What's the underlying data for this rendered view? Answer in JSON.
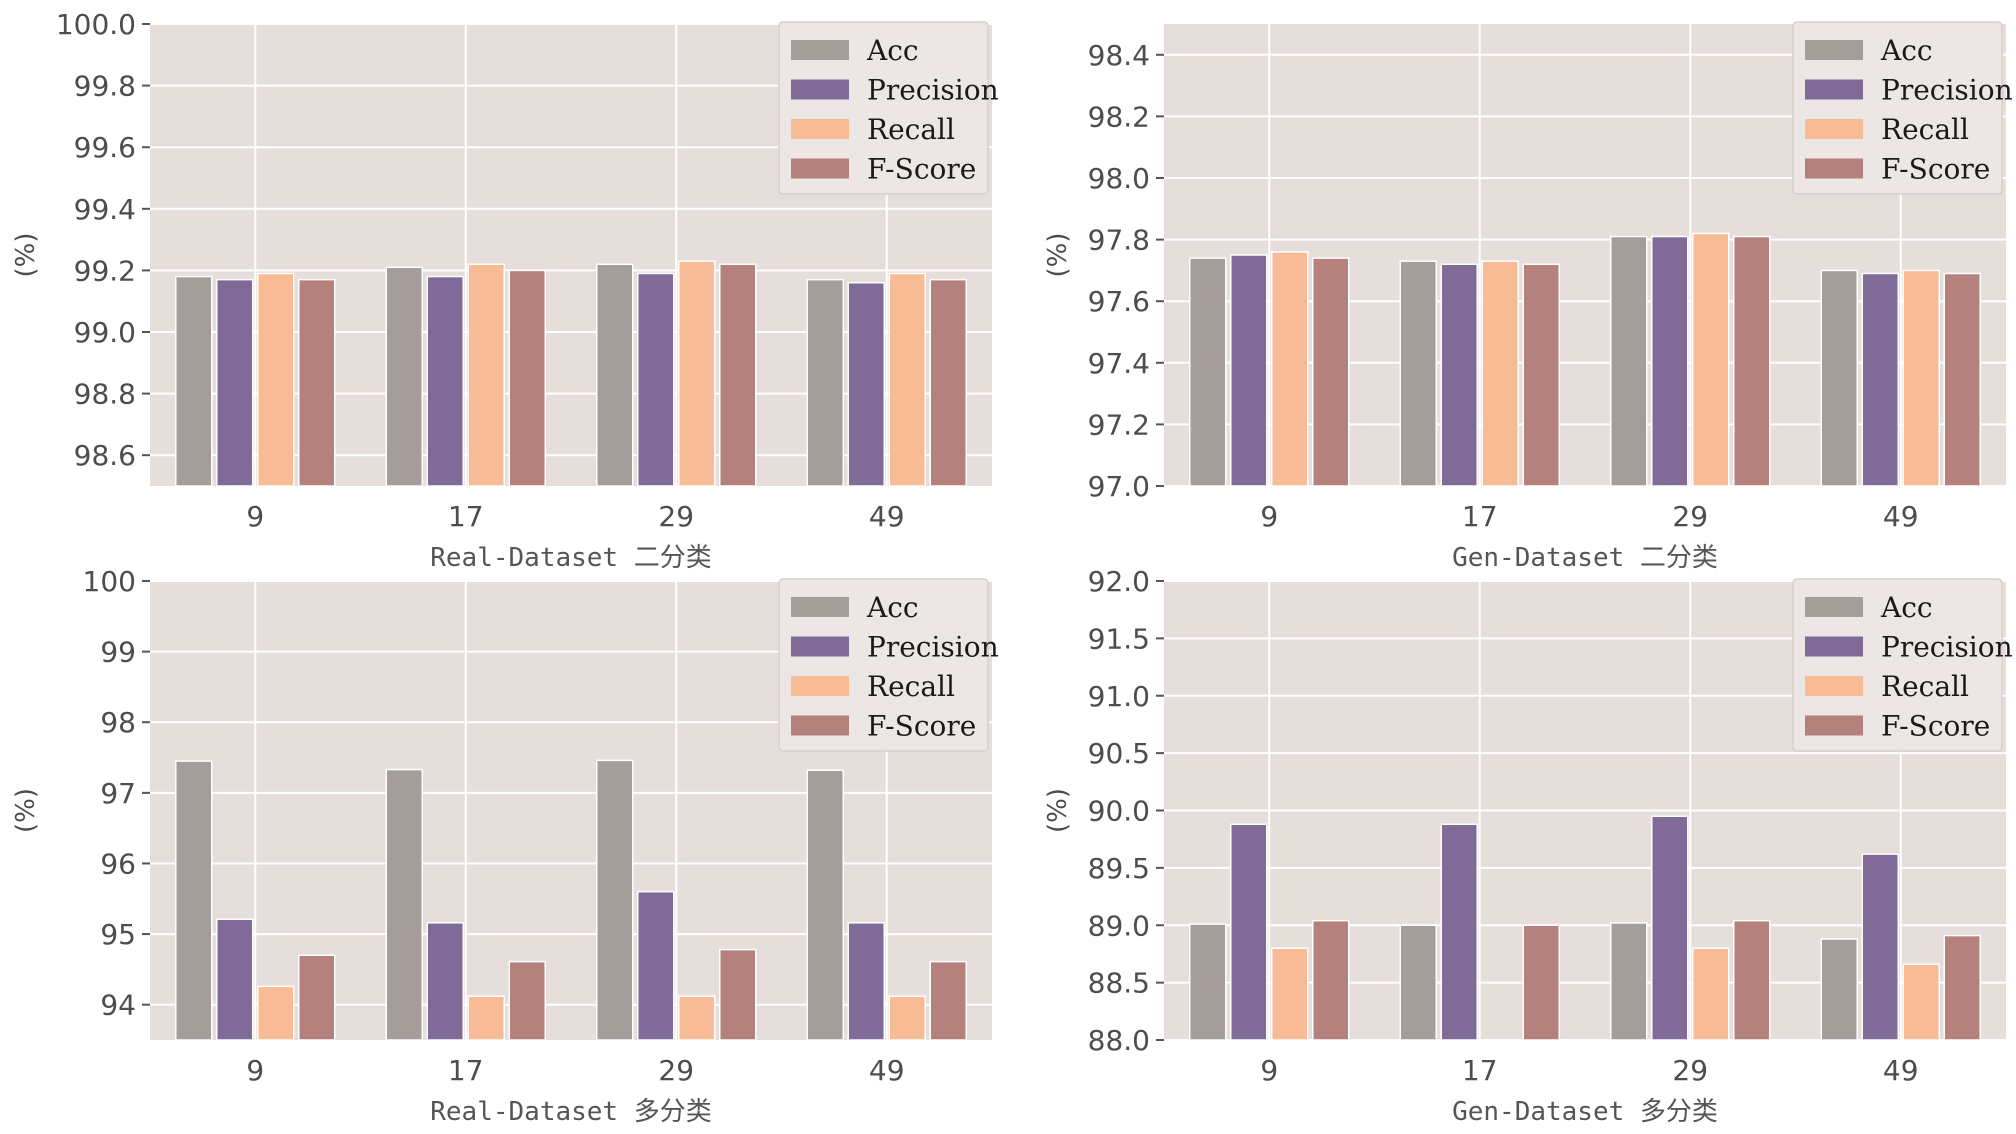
{
  "colors": {
    "background": "#e5dedb",
    "grid": "#ffffff",
    "legend_bg": "#ece7e5",
    "legend_border": "#d6cfcc"
  },
  "chart_data": [
    {
      "type": "bar",
      "xlabel": "Real-Dataset 二分类",
      "ylabel": "(%)",
      "categories": [
        "9",
        "17",
        "29",
        "49"
      ],
      "ylim": [
        98.5,
        100.0
      ],
      "yticks": [
        98.6,
        98.8,
        99.0,
        99.2,
        99.4,
        99.6,
        99.8,
        100.0
      ],
      "ytick_labels": [
        "98.6",
        "98.8",
        "99.0",
        "99.2",
        "99.4",
        "99.6",
        "99.8",
        "100.0"
      ],
      "grid": true,
      "legend": "top-right",
      "series": [
        {
          "name": "Acc",
          "color": "#a59d9a",
          "values": [
            99.18,
            99.21,
            99.22,
            99.17
          ]
        },
        {
          "name": "Precision",
          "color": "#806b98",
          "values": [
            99.17,
            99.18,
            99.19,
            99.16
          ]
        },
        {
          "name": "Recall",
          "color": "#f7bb96",
          "values": [
            99.19,
            99.22,
            99.23,
            99.19
          ]
        },
        {
          "name": "F-Score",
          "color": "#b5817d",
          "values": [
            99.17,
            99.2,
            99.22,
            99.17
          ]
        }
      ]
    },
    {
      "type": "bar",
      "xlabel": "Gen-Dataset 二分类",
      "ylabel": "(%)",
      "categories": [
        "9",
        "17",
        "29",
        "49"
      ],
      "ylim": [
        97.0,
        98.5
      ],
      "yticks": [
        97.0,
        97.2,
        97.4,
        97.6,
        97.8,
        98.0,
        98.2,
        98.4
      ],
      "ytick_labels": [
        "97.0",
        "97.2",
        "97.4",
        "97.6",
        "97.8",
        "98.0",
        "98.2",
        "98.4"
      ],
      "grid": true,
      "legend": "top-right",
      "series": [
        {
          "name": "Acc",
          "color": "#a59d9a",
          "values": [
            97.74,
            97.73,
            97.81,
            97.7
          ]
        },
        {
          "name": "Precision",
          "color": "#806b98",
          "values": [
            97.75,
            97.72,
            97.81,
            97.69
          ]
        },
        {
          "name": "Recall",
          "color": "#f7bb96",
          "values": [
            97.76,
            97.73,
            97.82,
            97.7
          ]
        },
        {
          "name": "F-Score",
          "color": "#b5817d",
          "values": [
            97.74,
            97.72,
            97.81,
            97.69
          ]
        }
      ]
    },
    {
      "type": "bar",
      "xlabel": "Real-Dataset 多分类",
      "ylabel": "(%)",
      "categories": [
        "9",
        "17",
        "29",
        "49"
      ],
      "ylim": [
        93.5,
        100.0
      ],
      "yticks": [
        94,
        95,
        96,
        97,
        98,
        99,
        100
      ],
      "ytick_labels": [
        "94",
        "95",
        "96",
        "97",
        "98",
        "99",
        "100"
      ],
      "grid": true,
      "legend": "top-right",
      "series": [
        {
          "name": "Acc",
          "color": "#a59d9a",
          "values": [
            97.45,
            97.33,
            97.46,
            97.32
          ]
        },
        {
          "name": "Precision",
          "color": "#806b98",
          "values": [
            95.21,
            95.16,
            95.6,
            95.16
          ]
        },
        {
          "name": "Recall",
          "color": "#f7bb96",
          "values": [
            94.26,
            94.12,
            94.12,
            94.12
          ]
        },
        {
          "name": "F-Score",
          "color": "#b5817d",
          "values": [
            94.7,
            94.61,
            94.78,
            94.61
          ]
        }
      ]
    },
    {
      "type": "bar",
      "xlabel": "Gen-Dataset 多分类",
      "ylabel": "(%)",
      "categories": [
        "9",
        "17",
        "29",
        "49"
      ],
      "ylim": [
        88.0,
        92.0
      ],
      "yticks": [
        88.0,
        88.5,
        89.0,
        89.5,
        90.0,
        90.5,
        91.0,
        91.5,
        92.0
      ],
      "ytick_labels": [
        "88.0",
        "88.5",
        "89.0",
        "89.5",
        "90.0",
        "90.5",
        "91.0",
        "91.5",
        "92.0"
      ],
      "grid": true,
      "legend": "top-right",
      "series": [
        {
          "name": "Acc",
          "color": "#a59d9a",
          "values": [
            89.01,
            89.0,
            89.02,
            88.88
          ]
        },
        {
          "name": "Precision",
          "color": "#806b98",
          "values": [
            89.88,
            89.88,
            89.95,
            89.62
          ]
        },
        {
          "name": "Recall",
          "color": "#f7bb96",
          "values": [
            88.8,
            null,
            88.8,
            88.66
          ]
        },
        {
          "name": "F-Score",
          "color": "#b5817d",
          "values": [
            89.04,
            89.0,
            89.04,
            88.91
          ]
        }
      ]
    }
  ]
}
